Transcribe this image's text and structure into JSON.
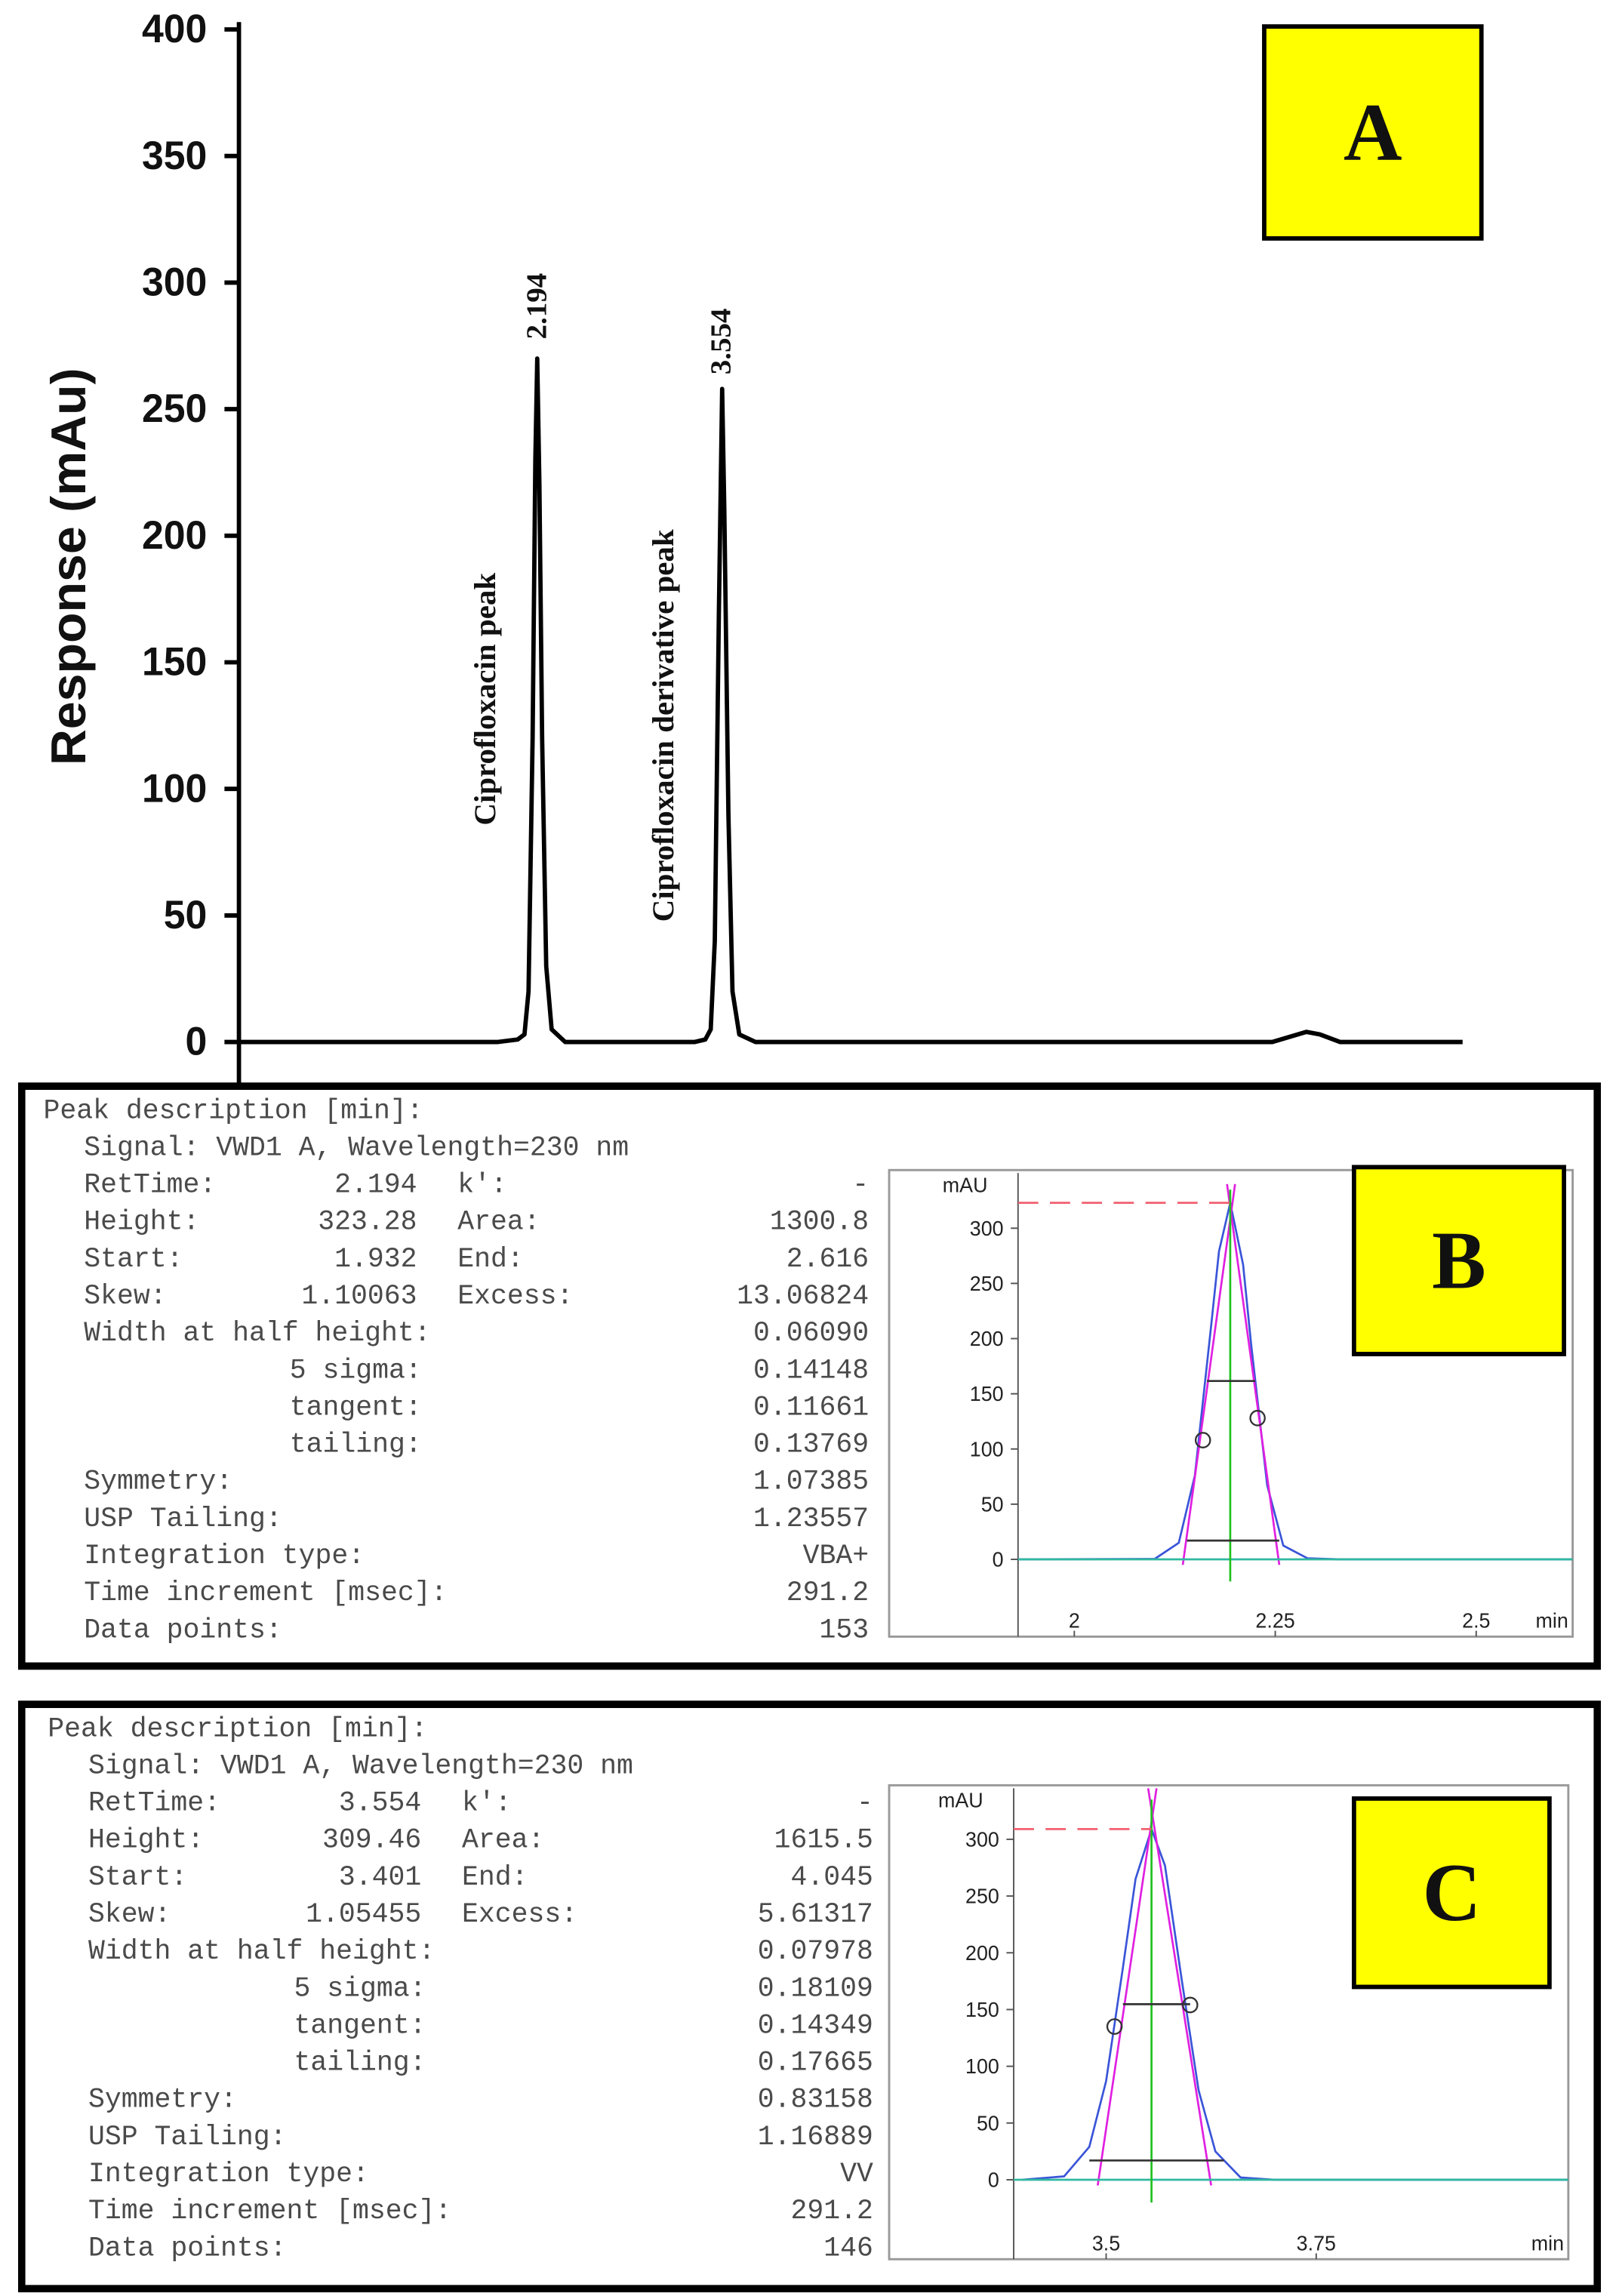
{
  "chart_data": [
    {
      "type": "line",
      "ylabel": "Response (mAu)",
      "panel_label": "A",
      "ylim": [
        0,
        400
      ],
      "yticks": [
        0,
        50,
        100,
        150,
        200,
        250,
        300,
        350,
        400
      ],
      "xlim": [
        0,
        9
      ],
      "peak_labels": [
        "2.194",
        "3.554"
      ],
      "peak_names": [
        "Ciprofloxacin peak",
        "Ciprofloxacin derivative peak"
      ],
      "series": [
        {
          "color": "#000000",
          "x": [
            0,
            1.9,
            2.05,
            2.1,
            2.13,
            2.16,
            2.18,
            2.194,
            2.21,
            2.23,
            2.26,
            2.3,
            2.4,
            3.35,
            3.43,
            3.47,
            3.5,
            3.53,
            3.554,
            3.57,
            3.6,
            3.63,
            3.68,
            3.8,
            7.6,
            7.85,
            7.95,
            8.1,
            9
          ],
          "values": [
            0,
            0,
            1,
            3,
            20,
            120,
            230,
            270,
            220,
            120,
            30,
            5,
            0,
            0,
            1,
            5,
            40,
            170,
            258,
            210,
            90,
            20,
            3,
            0,
            0,
            4,
            3,
            0,
            0
          ]
        }
      ]
    },
    {
      "type": "line",
      "ylabel": "mAU",
      "xlabel": "min",
      "panel_label": "B",
      "ylim": [
        -70,
        350
      ],
      "yticks": [
        0,
        50,
        100,
        150,
        200,
        250,
        300
      ],
      "xlim": [
        1.93,
        2.62
      ],
      "xticks": [
        2,
        2.25,
        2.5
      ],
      "series": [
        {
          "color": "#3a55d8",
          "x": [
            1.93,
            2.1,
            2.13,
            2.15,
            2.17,
            2.18,
            2.194,
            2.21,
            2.22,
            2.24,
            2.26,
            2.29,
            2.33,
            2.62
          ],
          "values": [
            0,
            0.4,
            15,
            76,
            210,
            279,
            323,
            267,
            195,
            67,
            12.5,
            1,
            0,
            0
          ]
        },
        {
          "color": "#e020e0",
          "x": [
            2.135,
            2.2
          ],
          "values": [
            -5,
            340
          ]
        },
        {
          "color": "#e020e0",
          "x": [
            2.19,
            2.255
          ],
          "values": [
            340,
            -5
          ]
        },
        {
          "color": "#30b8a0",
          "x": [
            1.93,
            2.62
          ],
          "values": [
            0,
            0
          ]
        },
        {
          "color": "#20c020",
          "x": [
            2.194,
            2.194
          ],
          "values": [
            -20,
            335
          ]
        },
        {
          "color": "#f06070",
          "dash": true,
          "x": [
            1.93,
            2.194
          ],
          "values": [
            323,
            323
          ]
        },
        {
          "color": "#333333",
          "x": [
            2.165,
            2.225
          ],
          "values": [
            161.6,
            161.6
          ]
        },
        {
          "color": "#333333",
          "x": [
            2.14,
            2.255
          ],
          "values": [
            17,
            17
          ]
        },
        {
          "color": "#333333",
          "marker": "circle",
          "x": [
            2.16,
            2.228
          ],
          "values": [
            108,
            128
          ]
        }
      ]
    },
    {
      "type": "line",
      "ylabel": "mAU",
      "xlabel": "min",
      "panel_label": "C",
      "ylim": [
        -70,
        345
      ],
      "yticks": [
        0,
        50,
        100,
        150,
        200,
        250,
        300
      ],
      "xlim": [
        3.39,
        4.05
      ],
      "xticks": [
        3.5,
        3.75
      ],
      "series": [
        {
          "color": "#3a55d8",
          "x": [
            3.4,
            3.45,
            3.48,
            3.5,
            3.52,
            3.535,
            3.554,
            3.57,
            3.59,
            3.61,
            3.63,
            3.66,
            3.7,
            4.05
          ],
          "values": [
            0,
            3,
            29,
            87,
            187,
            265,
            309,
            277,
            176,
            79,
            25,
            2,
            0,
            0
          ]
        },
        {
          "color": "#e020e0",
          "x": [
            3.49,
            3.56
          ],
          "values": [
            -5,
            345
          ]
        },
        {
          "color": "#e020e0",
          "x": [
            3.55,
            3.625
          ],
          "values": [
            345,
            -5
          ]
        },
        {
          "color": "#30b8a0",
          "x": [
            3.39,
            4.05
          ],
          "values": [
            0,
            0
          ]
        },
        {
          "color": "#20c020",
          "x": [
            3.554,
            3.554
          ],
          "values": [
            -20,
            335
          ]
        },
        {
          "color": "#f06070",
          "dash": true,
          "x": [
            3.39,
            3.554
          ],
          "values": [
            309,
            309
          ]
        },
        {
          "color": "#333333",
          "x": [
            3.52,
            3.6
          ],
          "values": [
            154.7,
            154.7
          ]
        },
        {
          "color": "#333333",
          "x": [
            3.48,
            3.64
          ],
          "values": [
            17,
            17
          ]
        },
        {
          "color": "#333333",
          "marker": "circle",
          "x": [
            3.51,
            3.6
          ],
          "values": [
            135,
            154
          ]
        }
      ]
    }
  ],
  "reports": [
    {
      "heading": "Peak description [min]:",
      "signal": "Signal: VWD1 A, Wavelength=230 nm",
      "rows": [
        [
          "RetTime:",
          "2.194",
          "k':",
          "-"
        ],
        [
          "Height:",
          "323.28",
          "Area:",
          "1300.8"
        ],
        [
          "Start:",
          "1.932",
          "End:",
          "2.616"
        ],
        [
          "Skew:",
          "1.10063",
          "Excess:",
          "13.06824"
        ],
        [
          "Width at half height:",
          "0.06090"
        ],
        [
          "5 sigma:",
          "0.14148"
        ],
        [
          "tangent:",
          "0.11661"
        ],
        [
          "tailing:",
          "0.13769"
        ],
        [
          "Symmetry:",
          "1.07385"
        ],
        [
          "USP Tailing:",
          "1.23557"
        ],
        [
          "Integration type:",
          "VBA+"
        ],
        [
          "Time increment [msec]:",
          "291.2"
        ],
        [
          "Data points:",
          "153"
        ]
      ]
    },
    {
      "heading": "Peak description [min]:",
      "signal": "Signal: VWD1 A, Wavelength=230 nm",
      "rows": [
        [
          "RetTime:",
          "3.554",
          "k':",
          "-"
        ],
        [
          "Height:",
          "309.46",
          "Area:",
          "1615.5"
        ],
        [
          "Start:",
          "3.401",
          "End:",
          "4.045"
        ],
        [
          "Skew:",
          "1.05455",
          "Excess:",
          "5.61317"
        ],
        [
          "Width at half height:",
          "0.07978"
        ],
        [
          "5 sigma:",
          "0.18109"
        ],
        [
          "tangent:",
          "0.14349"
        ],
        [
          "tailing:",
          "0.17665"
        ],
        [
          "Symmetry:",
          "0.83158"
        ],
        [
          "USP Tailing:",
          "1.16889"
        ],
        [
          "Integration type:",
          "VV"
        ],
        [
          "Time increment [msec]:",
          "291.2"
        ],
        [
          "Data points:",
          "146"
        ]
      ]
    }
  ]
}
